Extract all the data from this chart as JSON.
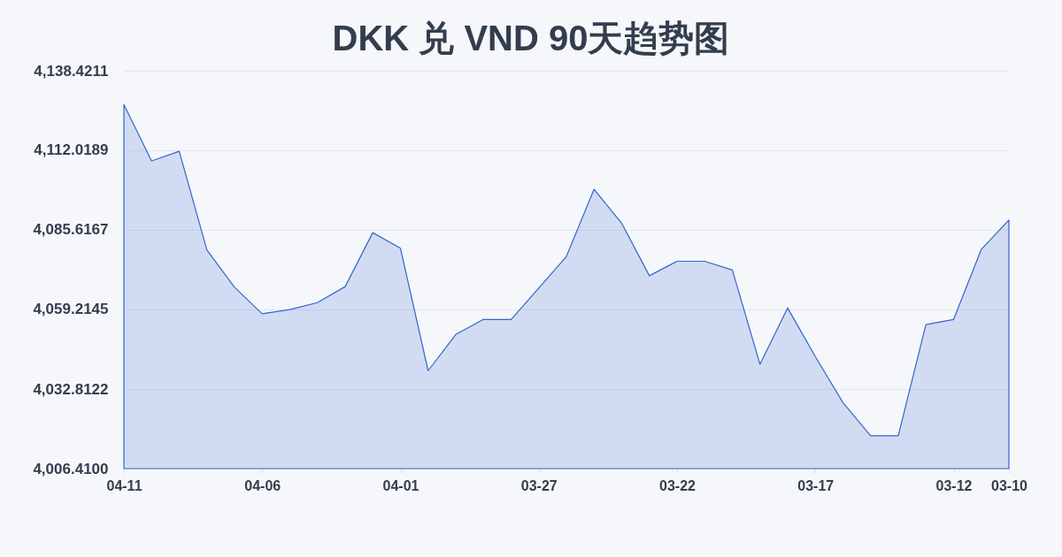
{
  "chart_data": {
    "type": "area",
    "title": "DKK 兑 VND 90天趋势图",
    "categories": [
      "04-11",
      null,
      null,
      null,
      null,
      "04-06",
      null,
      null,
      null,
      null,
      "04-01",
      null,
      null,
      null,
      null,
      "03-27",
      null,
      null,
      null,
      null,
      "03-22",
      null,
      null,
      null,
      null,
      "03-17",
      null,
      null,
      null,
      null,
      "03-12",
      null,
      "03-10"
    ],
    "series": [
      {
        "color": "#3366cc",
        "values": [
          4127.2,
          4108.5,
          4111.7,
          4079.0,
          4066.6,
          4057.8,
          4059.2,
          4061.5,
          4066.8,
          4084.7,
          4079.5,
          4038.9,
          4050.9,
          4055.9,
          4055.9,
          4066.3,
          4076.8,
          4099.1,
          4087.8,
          4070.4,
          4075.2,
          4075.2,
          4072.3,
          4041.0,
          4059.7,
          4043.6,
          4028.3,
          4017.3,
          4017.3,
          4054.2,
          4055.9,
          4079.1,
          4088.9
        ]
      }
    ],
    "ylim": [
      4006.41,
      4138.4211
    ],
    "yticks": [
      {
        "value": 4006.41,
        "label": "4,006.4100"
      },
      {
        "value": 4032.8122,
        "label": "4,032.8122"
      },
      {
        "value": 4059.2145,
        "label": "4,059.2145"
      },
      {
        "value": 4085.6167,
        "label": "4,085.6167"
      },
      {
        "value": 4112.0189,
        "label": "4,112.0189"
      },
      {
        "value": 4138.4211,
        "label": "4,138.4211"
      }
    ],
    "grid": "y",
    "line_style": "solid"
  }
}
